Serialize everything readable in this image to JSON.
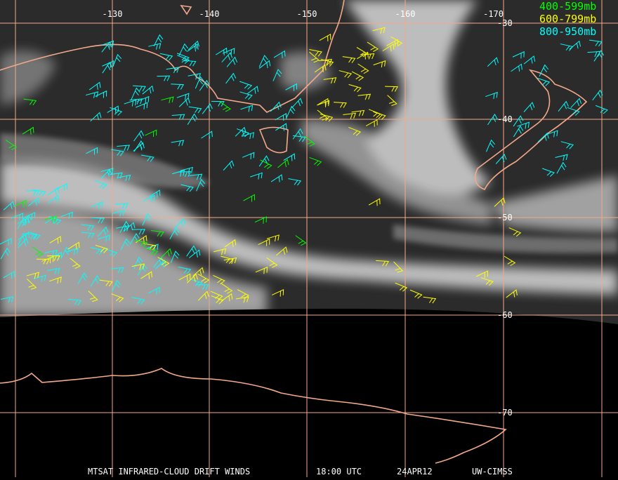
{
  "longitude_labels": [
    "-130",
    "-140",
    "-150",
    "-160",
    "-170"
  ],
  "latitude_labels": [
    "-30",
    "-40",
    "-50",
    "-60",
    "-70"
  ],
  "legend": [
    {
      "label": "400-599mb",
      "color": "#00ff00"
    },
    {
      "label": "600-799mb",
      "color": "#ffff00"
    },
    {
      "label": "800-950mb",
      "color": "#00ffff"
    }
  ],
  "footer": {
    "product": "MTSAT INFRARED-CLOUD DRIFT WINDS",
    "time": "18:00 UTC",
    "date": "24APR12",
    "source": "UW-CIMSS"
  }
}
